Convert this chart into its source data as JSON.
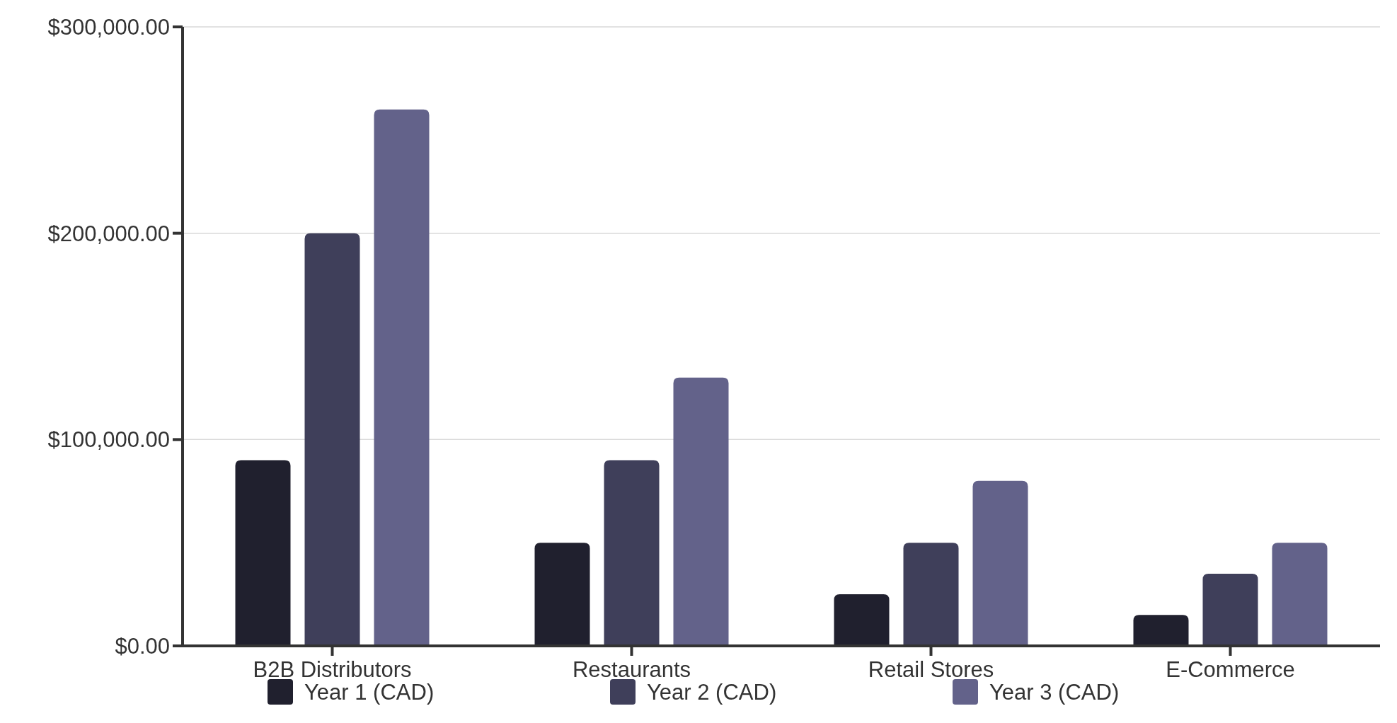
{
  "chart_data": {
    "type": "bar",
    "categories": [
      "B2B Distributors",
      "Restaurants",
      "Retail Stores",
      "E-Commerce"
    ],
    "series": [
      {
        "name": "Year 1 (CAD)",
        "color": "#20202e",
        "values": [
          90000,
          50000,
          25000,
          15000
        ]
      },
      {
        "name": "Year 2 (CAD)",
        "color": "#3f3f5a",
        "values": [
          200000,
          90000,
          50000,
          35000
        ]
      },
      {
        "name": "Year 3 (CAD)",
        "color": "#63628a",
        "values": [
          260000,
          130000,
          80000,
          50000
        ]
      }
    ],
    "ylim": [
      0,
      300000
    ],
    "yticks": [
      {
        "value": 0,
        "label": "$0.00"
      },
      {
        "value": 100000,
        "label": "$100,000.00"
      },
      {
        "value": 200000,
        "label": "$200,000.00"
      },
      {
        "value": 300000,
        "label": "$300,000.00"
      }
    ],
    "grid": "y",
    "legend": "bottom"
  }
}
